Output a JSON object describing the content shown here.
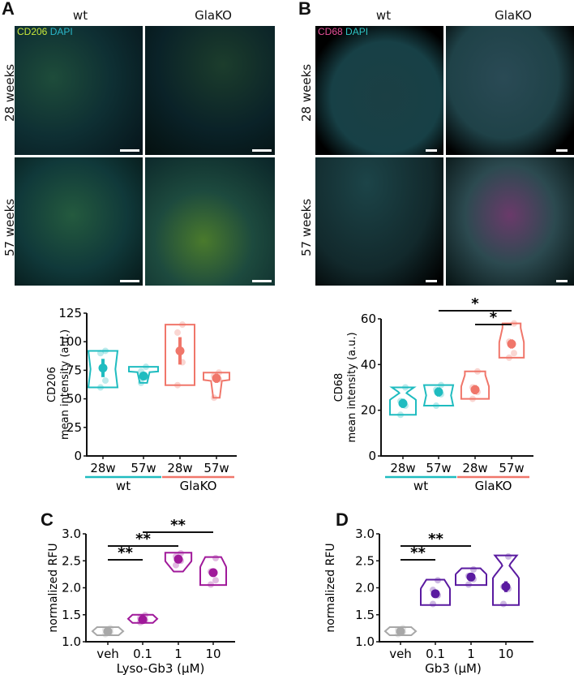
{
  "panels": {
    "A": {
      "letter": "A",
      "columns": [
        "wt",
        "GlaKO"
      ],
      "rows": [
        "28 weeks",
        "57 weeks"
      ],
      "stain": {
        "marker": "CD206",
        "marker_color": "#c8e83a",
        "counter": "DAPI",
        "counter_color": "#2ab7c9"
      }
    },
    "B": {
      "letter": "B",
      "columns": [
        "wt",
        "GlaKO"
      ],
      "rows": [
        "28 weeks",
        "57 weeks"
      ],
      "stain": {
        "marker": "CD68",
        "marker_color": "#e8509a",
        "counter": "DAPI",
        "counter_color": "#2ec4c4"
      }
    },
    "C": {
      "letter": "C"
    },
    "D": {
      "letter": "D"
    }
  },
  "colors": {
    "wt": "#1fbcc0",
    "glako": "#f0766a",
    "veh": "#a8a8a8",
    "lyso_gb3": "#a0199a",
    "gb3": "#5a1aa0"
  },
  "chart_data": [
    {
      "panel": "A",
      "type": "violin",
      "ylabel_line1": "CD206",
      "ylabel_line2": "mean intensity (a.u.)",
      "ylim": [
        0,
        125
      ],
      "yticks": [
        0,
        25,
        50,
        75,
        100,
        125
      ],
      "categories": [
        "28w",
        "57w",
        "28w",
        "57w"
      ],
      "groups": [
        {
          "name": "wt",
          "span": [
            0,
            1
          ]
        },
        {
          "name": "GlaKO",
          "span": [
            2,
            3
          ]
        }
      ],
      "series": [
        {
          "name": "wt 28w",
          "mean": 77,
          "err": [
            69,
            85
          ],
          "range": [
            60,
            92
          ],
          "points": [
            60,
            66,
            90,
            92
          ]
        },
        {
          "name": "wt 57w",
          "mean": 70,
          "err": [
            67,
            73
          ],
          "range": [
            64,
            78
          ],
          "points": [
            64,
            69,
            74,
            78
          ]
        },
        {
          "name": "GlaKO 28w",
          "mean": 92,
          "err": [
            80,
            104
          ],
          "range": [
            62,
            115
          ],
          "points": [
            62,
            82,
            108,
            115
          ]
        },
        {
          "name": "GlaKO 57w",
          "mean": 68,
          "err": [
            64,
            72
          ],
          "range": [
            51,
            73
          ],
          "points": [
            51,
            67,
            70,
            73
          ]
        }
      ],
      "significance": []
    },
    {
      "panel": "B",
      "type": "violin",
      "ylabel_line1": "CD68",
      "ylabel_line2": "mean intensity (a.u.)",
      "ylim": [
        0,
        60
      ],
      "yticks": [
        0,
        20,
        40,
        60
      ],
      "categories": [
        "28w",
        "57w",
        "28w",
        "57w"
      ],
      "groups": [
        {
          "name": "wt",
          "span": [
            0,
            1
          ]
        },
        {
          "name": "GlaKO",
          "span": [
            2,
            3
          ]
        }
      ],
      "series": [
        {
          "name": "wt 28w",
          "mean": 23,
          "err": [
            21,
            25
          ],
          "range": [
            18,
            30
          ],
          "points": [
            18,
            22,
            24,
            30
          ]
        },
        {
          "name": "wt 57w",
          "mean": 28,
          "err": [
            26,
            30
          ],
          "range": [
            22,
            31
          ],
          "points": [
            22,
            27,
            29,
            31
          ]
        },
        {
          "name": "GlaKO 28w",
          "mean": 29,
          "err": [
            27,
            31
          ],
          "range": [
            25,
            37
          ],
          "points": [
            25,
            28,
            30,
            37
          ]
        },
        {
          "name": "GlaKO 57w",
          "mean": 49,
          "err": [
            47,
            51
          ],
          "range": [
            43,
            58
          ],
          "points": [
            43,
            45,
            50,
            58
          ]
        }
      ],
      "significance": [
        {
          "from": 1,
          "to": 3,
          "label": "*",
          "level": 2
        },
        {
          "from": 2,
          "to": 3,
          "label": "*",
          "level": 1
        }
      ]
    },
    {
      "panel": "C",
      "type": "violin",
      "ylabel": "normalized RFU",
      "xlabel": "Lyso-Gb3 (μM)",
      "ylim": [
        1.0,
        3.0
      ],
      "yticks": [
        "1.0",
        "1.5",
        "2.0",
        "2.5",
        "3.0"
      ],
      "categories": [
        "veh",
        "0.1",
        "1",
        "10"
      ],
      "series": [
        {
          "name": "veh",
          "mean": 1.19,
          "err": [
            1.16,
            1.22
          ],
          "range": [
            1.12,
            1.27
          ],
          "points": [
            1.14,
            1.18,
            1.22,
            1.25
          ]
        },
        {
          "name": "0.1",
          "mean": 1.41,
          "err": [
            1.38,
            1.44
          ],
          "range": [
            1.35,
            1.5
          ],
          "points": [
            1.36,
            1.4,
            1.44,
            1.49
          ]
        },
        {
          "name": "1",
          "mean": 2.53,
          "err": [
            2.48,
            2.58
          ],
          "range": [
            2.3,
            2.65
          ],
          "points": [
            2.42,
            2.5,
            2.58,
            2.64
          ]
        },
        {
          "name": "10",
          "mean": 2.28,
          "err": [
            2.21,
            2.35
          ],
          "range": [
            2.05,
            2.57
          ],
          "points": [
            2.06,
            2.14,
            2.3,
            2.55
          ]
        }
      ],
      "significance": [
        {
          "from": 0,
          "to": 1,
          "label": "**",
          "level": 1
        },
        {
          "from": 0,
          "to": 2,
          "label": "**",
          "level": 2
        },
        {
          "from": 1,
          "to": 3,
          "label": "**",
          "level": 3
        }
      ]
    },
    {
      "panel": "D",
      "type": "violin",
      "ylabel": "normalized RFU",
      "xlabel": "Gb3 (μM)",
      "ylim": [
        1.0,
        3.0
      ],
      "yticks": [
        "1.0",
        "1.5",
        "2.0",
        "2.5",
        "3.0"
      ],
      "categories": [
        "veh",
        "0.1",
        "1",
        "10"
      ],
      "series": [
        {
          "name": "veh",
          "mean": 1.19,
          "err": [
            1.16,
            1.22
          ],
          "range": [
            1.12,
            1.27
          ],
          "points": [
            1.14,
            1.18,
            1.22,
            1.25
          ]
        },
        {
          "name": "0.1",
          "mean": 1.89,
          "err": [
            1.83,
            1.95
          ],
          "range": [
            1.68,
            2.15
          ],
          "points": [
            1.7,
            1.86,
            1.96,
            2.14
          ]
        },
        {
          "name": "1",
          "mean": 2.2,
          "err": [
            2.16,
            2.24
          ],
          "range": [
            2.05,
            2.36
          ],
          "points": [
            2.06,
            2.16,
            2.22,
            2.34
          ]
        },
        {
          "name": "10",
          "mean": 2.02,
          "err": [
            1.92,
            2.12
          ],
          "range": [
            1.68,
            2.6
          ],
          "points": [
            1.7,
            1.98,
            2.02,
            2.58
          ]
        }
      ],
      "significance": [
        {
          "from": 0,
          "to": 1,
          "label": "**",
          "level": 1
        },
        {
          "from": 0,
          "to": 2,
          "label": "**",
          "level": 2
        }
      ]
    }
  ]
}
